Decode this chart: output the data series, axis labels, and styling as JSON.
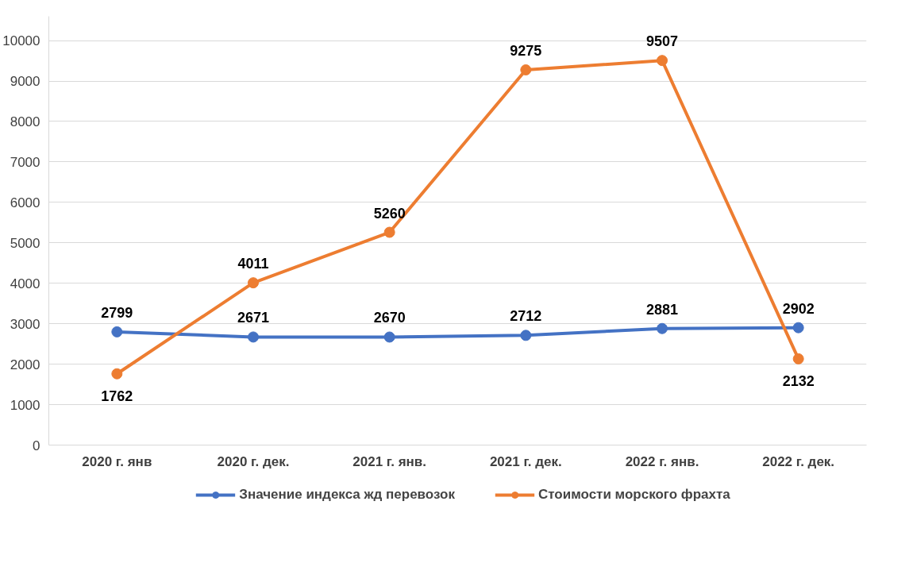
{
  "chart_data": {
    "type": "line",
    "categories": [
      "2020 г. янв",
      "2020 г. дек.",
      "2021 г. янв.",
      "2021 г. дек.",
      "2022 г. янв.",
      "2022 г. дек."
    ],
    "series": [
      {
        "name": "Значение индекса жд перевозок",
        "color": "#4472c4",
        "values": [
          2799,
          2671,
          2670,
          2712,
          2881,
          2902
        ]
      },
      {
        "name": "Стоимости морского фрахта",
        "color": "#ed7d31",
        "values": [
          1762,
          4011,
          5260,
          9275,
          9507,
          2132
        ]
      }
    ],
    "ylim": [
      0,
      10600
    ],
    "yticks": [
      0,
      1000,
      2000,
      3000,
      4000,
      5000,
      6000,
      7000,
      8000,
      9000,
      10000
    ],
    "grid": "y",
    "legend": "bottom",
    "marker": "circle",
    "line_style": "solid",
    "data_labels": true
  }
}
